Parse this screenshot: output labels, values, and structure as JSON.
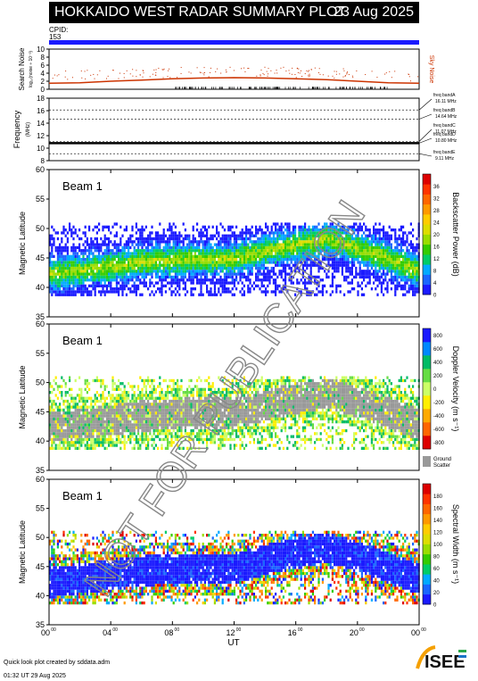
{
  "title": "HOKKAIDO WEST RADAR SUMMARY PLOT",
  "date": "23 Aug 2025",
  "cpid_label": "CPID:",
  "cpid_value": "153",
  "noise_panel": {
    "ylabel": "Search Noise",
    "ylabel_sub": "log₁₀(noise ÷ 10⁻³)",
    "ticks": [
      "0",
      "2",
      "4",
      "6",
      "8",
      "10"
    ],
    "right_label": "Sky Noise",
    "color": "#cc3300",
    "ylim": [
      0,
      10
    ]
  },
  "freq_panel": {
    "ylabel": "Frequency",
    "unit": "(MHz)",
    "ticks": [
      "8",
      "10",
      "12",
      "14",
      "16",
      "18"
    ],
    "ylim": [
      8,
      18
    ],
    "bands": [
      {
        "name": "freq bandA",
        "value": "16.11 MHz",
        "mhz": 16.11
      },
      {
        "name": "freq bandB",
        "value": "14.64 MHz",
        "mhz": 14.64
      },
      {
        "name": "freq bandC",
        "value": "11.07 MHz",
        "mhz": 11.07
      },
      {
        "name": "freq bandD",
        "value": "10.80 MHz",
        "mhz": 10.8
      },
      {
        "name": "freq bandE",
        "value": "9.11 MHz",
        "mhz": 9.11
      }
    ]
  },
  "panels": [
    {
      "id": "power",
      "beam_label": "Beam  1",
      "ylabel": "Magnetic Latitude",
      "yticks": [
        "35",
        "40",
        "45",
        "50",
        "55",
        "60"
      ],
      "ylim": [
        35,
        60
      ],
      "cbar_label": "Backscatter Power (dB)",
      "cbar_ticks": [
        "0",
        "4",
        "8",
        "12",
        "16",
        "20",
        "24",
        "28",
        "32",
        "36"
      ],
      "cbar_colors": [
        "#1a1aff",
        "#1a66ff",
        "#00aaff",
        "#00cc66",
        "#33cc00",
        "#99dd00",
        "#dddd00",
        "#ffcc00",
        "#ff9900",
        "#ff6600",
        "#ff3300",
        "#dd0000"
      ],
      "ground_scatter": false
    },
    {
      "id": "velocity",
      "beam_label": "Beam  1",
      "ylabel": "Magnetic Latitude",
      "yticks": [
        "35",
        "40",
        "45",
        "50",
        "55",
        "60"
      ],
      "ylim": [
        35,
        60
      ],
      "cbar_label": "Doppler Velocity (m s⁻¹)",
      "cbar_ticks": [
        "-800",
        "-600",
        "-400",
        "-200",
        "0",
        "200",
        "400",
        "600",
        "800"
      ],
      "cbar_colors": [
        "#dd0000",
        "#ff6600",
        "#ffaa00",
        "#ffee00",
        "#ccff66",
        "#66dd44",
        "#00bb66",
        "#0088ff",
        "#1a1aff"
      ],
      "ground_scatter": true,
      "gs_label_1": "Ground",
      "gs_label_2": "Scatter"
    },
    {
      "id": "width",
      "beam_label": "Beam  1",
      "ylabel": "Magnetic Latitude",
      "yticks": [
        "35",
        "40",
        "45",
        "50",
        "55",
        "60"
      ],
      "ylim": [
        35,
        60
      ],
      "cbar_label": "Spectral Width (m s⁻¹)",
      "cbar_ticks": [
        "0",
        "20",
        "40",
        "60",
        "80",
        "100",
        "120",
        "140",
        "160",
        "180"
      ],
      "cbar_colors": [
        "#1a1aff",
        "#1a66ff",
        "#00aaff",
        "#00cc66",
        "#33cc00",
        "#99dd00",
        "#dddd00",
        "#ffcc00",
        "#ff9900",
        "#ff6600",
        "#ff3300",
        "#dd0000"
      ],
      "ground_scatter": false
    }
  ],
  "xaxis": {
    "label": "UT",
    "ticks": [
      {
        "h": "00",
        "m": "00"
      },
      {
        "h": "04",
        "m": "00"
      },
      {
        "h": "08",
        "m": "00"
      },
      {
        "h": "12",
        "m": "00"
      },
      {
        "h": "16",
        "m": "00"
      },
      {
        "h": "20",
        "m": "00"
      },
      {
        "h": "00",
        "m": "00"
      }
    ]
  },
  "watermark": "NOT FOR PUBLICATION",
  "footer_line1": "Quick look plot created by sddata.adm",
  "footer_line2": "01:32 UT 29 Aug 2025",
  "logo_text": "ISEE",
  "chart_data": [
    {
      "type": "line",
      "title": "Search Noise",
      "xlabel": "UT",
      "ylabel": "Search Noise",
      "x": [
        0,
        2,
        4,
        6,
        8,
        10,
        12,
        14,
        16,
        18,
        20,
        22,
        24
      ],
      "series": [
        {
          "name": "Sky Noise",
          "values": [
            1.5,
            1.6,
            2.0,
            2.3,
            2.6,
            2.8,
            2.9,
            2.8,
            2.6,
            2.4,
            2.0,
            1.6,
            1.5
          ]
        }
      ],
      "ylim": [
        0,
        10
      ]
    },
    {
      "type": "line",
      "title": "Frequency",
      "xlabel": "UT",
      "ylabel": "Frequency (MHz)",
      "x": [
        0,
        24
      ],
      "series": [
        {
          "name": "",
          "values": [
            10.8,
            10.8
          ]
        }
      ],
      "ylim": [
        8,
        18
      ]
    },
    {
      "type": "heatmap",
      "title": "Backscatter Power (dB)",
      "xlabel": "UT",
      "ylabel": "Magnetic Latitude",
      "xlim": [
        0,
        24
      ],
      "ylim": [
        35,
        60
      ],
      "band_center_x": [
        0,
        3,
        6,
        9,
        12,
        15,
        18,
        21,
        24
      ],
      "band_center_y": [
        42.0,
        43.0,
        44.0,
        44.5,
        44.5,
        46.5,
        48.0,
        45.5,
        42.5
      ]
    },
    {
      "type": "heatmap",
      "title": "Doppler Velocity (m s⁻¹)",
      "xlabel": "UT",
      "ylabel": "Magnetic Latitude",
      "xlim": [
        0,
        24
      ],
      "ylim": [
        35,
        60
      ]
    },
    {
      "type": "heatmap",
      "title": "Spectral Width (m s⁻¹)",
      "xlabel": "UT",
      "ylabel": "Magnetic Latitude",
      "xlim": [
        0,
        24
      ],
      "ylim": [
        35,
        60
      ]
    }
  ]
}
